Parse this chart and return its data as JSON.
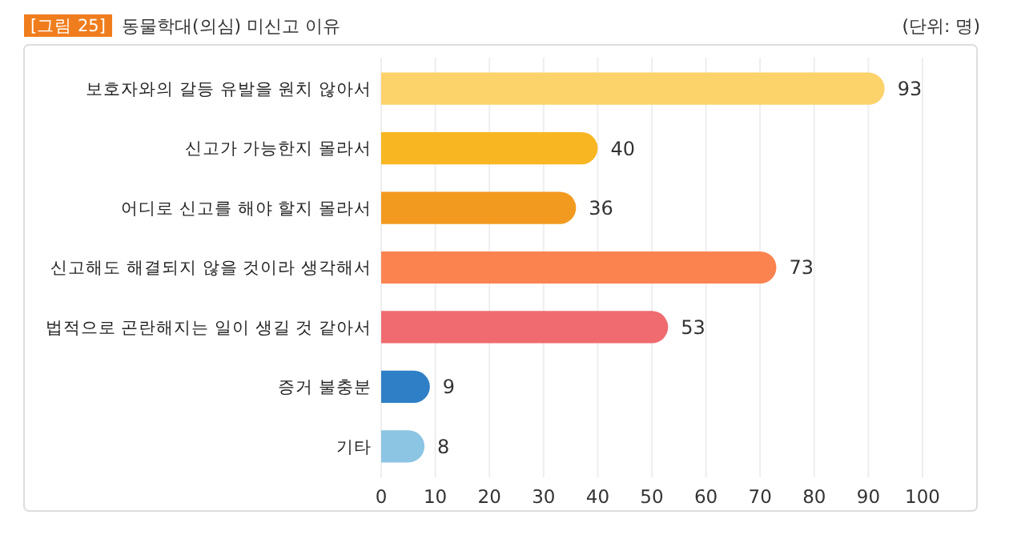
{
  "chart_data": {
    "type": "bar",
    "orientation": "horizontal",
    "title": "동물학대(의심) 미신고 이유",
    "annotations": [
      "[그림 25]",
      "(단위: 명)"
    ],
    "categories": [
      "보호자와의 갈등 유발을 원치 않아서",
      "신고가 가능한지 몰라서",
      "어디로 신고를 해야 할지 몰라서",
      "신고해도 해결되지 않을 것이라 생각해서",
      "법적으로 곤란해지는 일이 생길 것 같아서",
      "증거 불충분",
      "기타"
    ],
    "values": [
      93,
      40,
      36,
      73,
      53,
      9,
      8
    ],
    "colors": [
      "#fcd36a",
      "#f8b722",
      "#f29a1f",
      "#fb8350",
      "#ef6b6f",
      "#2f7fc6",
      "#8cc4e3"
    ],
    "xlim": [
      0,
      100
    ],
    "xticks": [
      0,
      10,
      20,
      30,
      40,
      50,
      60,
      70,
      80,
      90,
      100
    ],
    "grid": "x",
    "data_labels": true
  }
}
